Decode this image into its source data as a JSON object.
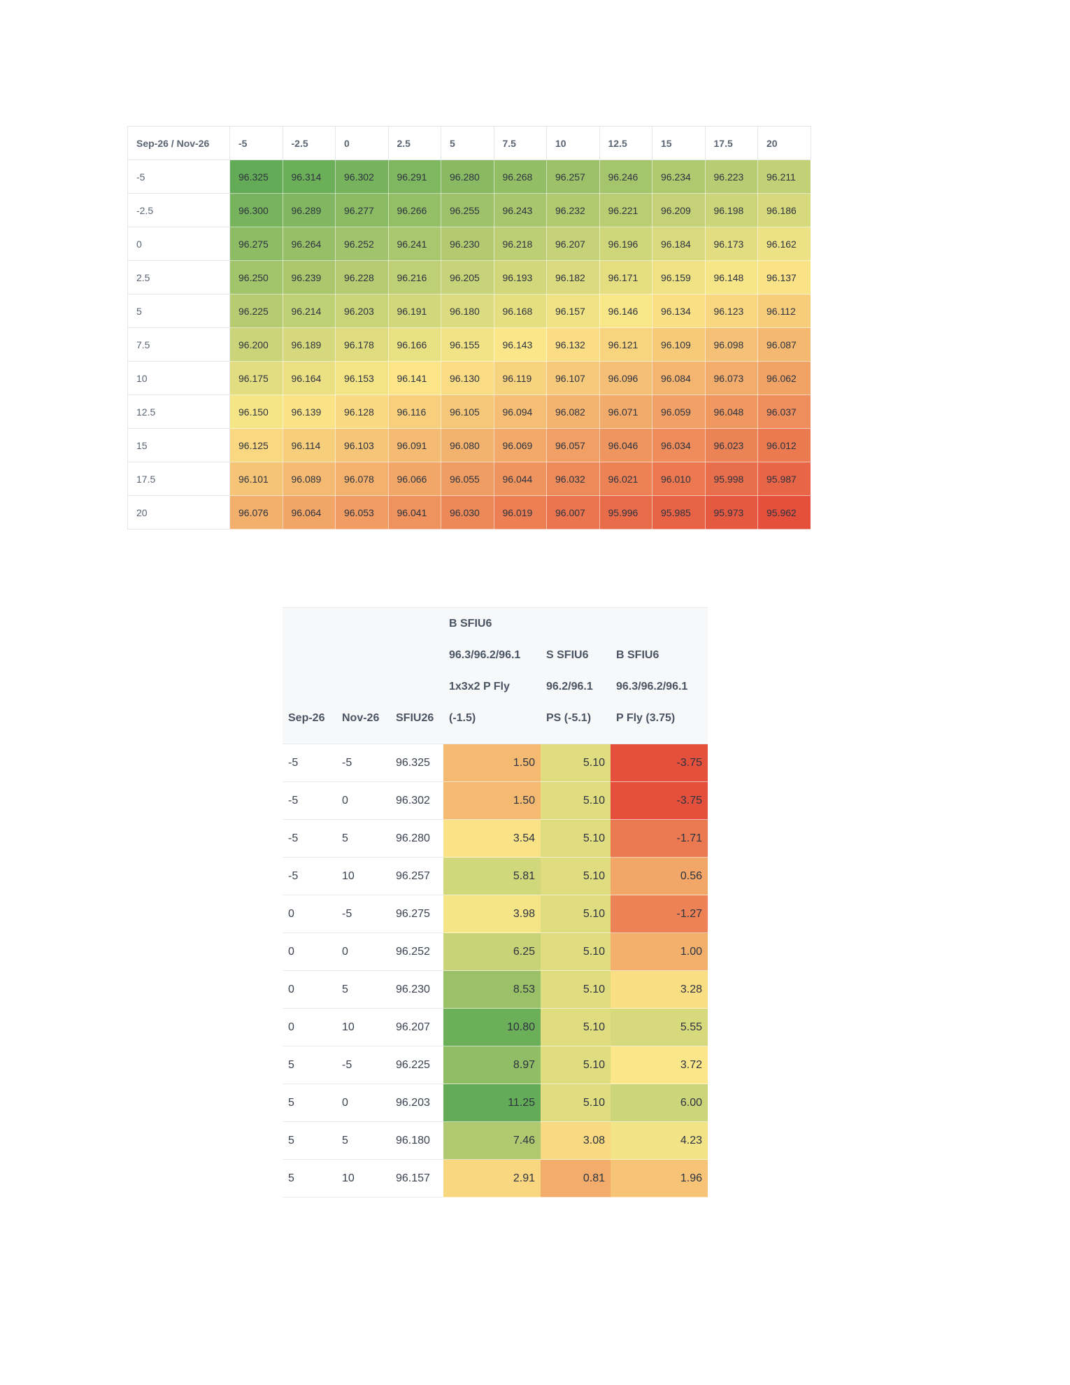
{
  "grid": {
    "corner_label": "Sep-26 / Nov-26",
    "col_headers": [
      "-5",
      "-2.5",
      "0",
      "2.5",
      "5",
      "7.5",
      "10",
      "12.5",
      "15",
      "17.5",
      "20"
    ],
    "rows": [
      {
        "label": "-5",
        "values": [
          "96.325",
          "96.314",
          "96.302",
          "96.291",
          "96.280",
          "96.268",
          "96.257",
          "96.246",
          "96.234",
          "96.223",
          "96.211"
        ]
      },
      {
        "label": "-2.5",
        "values": [
          "96.300",
          "96.289",
          "96.277",
          "96.266",
          "96.255",
          "96.243",
          "96.232",
          "96.221",
          "96.209",
          "96.198",
          "96.186"
        ]
      },
      {
        "label": "0",
        "values": [
          "96.275",
          "96.264",
          "96.252",
          "96.241",
          "96.230",
          "96.218",
          "96.207",
          "96.196",
          "96.184",
          "96.173",
          "96.162"
        ]
      },
      {
        "label": "2.5",
        "values": [
          "96.250",
          "96.239",
          "96.228",
          "96.216",
          "96.205",
          "96.193",
          "96.182",
          "96.171",
          "96.159",
          "96.148",
          "96.137"
        ]
      },
      {
        "label": "5",
        "values": [
          "96.225",
          "96.214",
          "96.203",
          "96.191",
          "96.180",
          "96.168",
          "96.157",
          "96.146",
          "96.134",
          "96.123",
          "96.112"
        ]
      },
      {
        "label": "7.5",
        "values": [
          "96.200",
          "96.189",
          "96.178",
          "96.166",
          "96.155",
          "96.143",
          "96.132",
          "96.121",
          "96.109",
          "96.098",
          "96.087"
        ]
      },
      {
        "label": "10",
        "values": [
          "96.175",
          "96.164",
          "96.153",
          "96.141",
          "96.130",
          "96.119",
          "96.107",
          "96.096",
          "96.084",
          "96.073",
          "96.062"
        ]
      },
      {
        "label": "12.5",
        "values": [
          "96.150",
          "96.139",
          "96.128",
          "96.116",
          "96.105",
          "96.094",
          "96.082",
          "96.071",
          "96.059",
          "96.048",
          "96.037"
        ]
      },
      {
        "label": "15",
        "values": [
          "96.125",
          "96.114",
          "96.103",
          "96.091",
          "96.080",
          "96.069",
          "96.057",
          "96.046",
          "96.034",
          "96.023",
          "96.012"
        ]
      },
      {
        "label": "17.5",
        "values": [
          "96.101",
          "96.089",
          "96.078",
          "96.066",
          "96.055",
          "96.044",
          "96.032",
          "96.021",
          "96.010",
          "95.998",
          "95.987"
        ]
      },
      {
        "label": "20",
        "values": [
          "96.076",
          "96.064",
          "96.053",
          "96.041",
          "96.030",
          "96.019",
          "96.007",
          "95.996",
          "95.985",
          "95.973",
          "95.962"
        ]
      }
    ]
  },
  "strategies": {
    "headers": {
      "sep": "Sep-26",
      "nov": "Nov-26",
      "sfiu": "SFIU26",
      "fly_13x2": [
        "B SFIU6",
        "96.3/96.2/96.1",
        "1x3x2 P Fly",
        "(-1.5)"
      ],
      "ps": [
        "S SFIU6",
        "96.2/96.1",
        "PS (-5.1)"
      ],
      "fly": [
        "B SFIU6",
        "96.3/96.2/96.1",
        "P Fly (3.75)"
      ]
    },
    "rows": [
      {
        "sep": "-5",
        "nov": "-5",
        "sfiu": "96.325",
        "a": "1.50",
        "b": "5.10",
        "c": "-3.75"
      },
      {
        "sep": "-5",
        "nov": "0",
        "sfiu": "96.302",
        "a": "1.50",
        "b": "5.10",
        "c": "-3.75"
      },
      {
        "sep": "-5",
        "nov": "5",
        "sfiu": "96.280",
        "a": "3.54",
        "b": "5.10",
        "c": "-1.71"
      },
      {
        "sep": "-5",
        "nov": "10",
        "sfiu": "96.257",
        "a": "5.81",
        "b": "5.10",
        "c": "0.56"
      },
      {
        "sep": "0",
        "nov": "-5",
        "sfiu": "96.275",
        "a": "3.98",
        "b": "5.10",
        "c": "-1.27"
      },
      {
        "sep": "0",
        "nov": "0",
        "sfiu": "96.252",
        "a": "6.25",
        "b": "5.10",
        "c": "1.00"
      },
      {
        "sep": "0",
        "nov": "5",
        "sfiu": "96.230",
        "a": "8.53",
        "b": "5.10",
        "c": "3.28"
      },
      {
        "sep": "0",
        "nov": "10",
        "sfiu": "96.207",
        "a": "10.80",
        "b": "5.10",
        "c": "5.55"
      },
      {
        "sep": "5",
        "nov": "-5",
        "sfiu": "96.225",
        "a": "8.97",
        "b": "5.10",
        "c": "3.72"
      },
      {
        "sep": "5",
        "nov": "0",
        "sfiu": "96.203",
        "a": "11.25",
        "b": "5.10",
        "c": "6.00"
      },
      {
        "sep": "5",
        "nov": "5",
        "sfiu": "96.180",
        "a": "7.46",
        "b": "3.08",
        "c": "4.23"
      },
      {
        "sep": "5",
        "nov": "10",
        "sfiu": "96.157",
        "a": "2.91",
        "b": "0.81",
        "c": "1.96"
      }
    ]
  },
  "colors": {
    "scale_green": "#63ab56",
    "scale_yellow": "#fbe789",
    "scale_red": "#e5503c",
    "header_bg": "#f7f8fa",
    "border": "#e3e6ea"
  }
}
